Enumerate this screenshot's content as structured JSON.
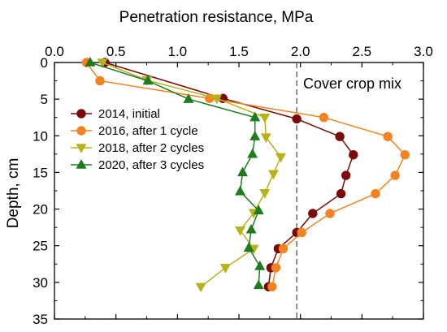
{
  "chart_data": {
    "type": "line",
    "title": "",
    "xlabel": "Penetration resistance, MPa",
    "ylabel": "Depth, cm",
    "xlim": [
      0,
      3.0
    ],
    "ylim": [
      0,
      35
    ],
    "y_inverted": true,
    "x_axis_position": "top",
    "x_ticks": [
      "0.0",
      "0.5",
      "1.0",
      "1.5",
      "2.0",
      "2.5",
      "3.0"
    ],
    "y_ticks": [
      "0",
      "5",
      "10",
      "15",
      "20",
      "25",
      "30",
      "35"
    ],
    "grid": false,
    "legend_position": "left",
    "reference_line": {
      "x": 1.97,
      "style": "dashed"
    },
    "annotation": "Cover crop mix",
    "series": [
      {
        "name": "2014, initial",
        "color": "#7a0a0a",
        "marker": "circle",
        "points": [
          [
            0.41,
            0
          ],
          [
            1.37,
            4.9
          ],
          [
            1.97,
            7.7
          ],
          [
            2.32,
            10.1
          ],
          [
            2.43,
            12.6
          ],
          [
            2.37,
            15.4
          ],
          [
            2.33,
            17.9
          ],
          [
            2.1,
            20.6
          ],
          [
            1.97,
            23.2
          ],
          [
            1.82,
            25.4
          ],
          [
            1.76,
            28.0
          ],
          [
            1.74,
            30.6
          ]
        ]
      },
      {
        "name": "2016, after 1 cycle",
        "color": "#f58220",
        "marker": "circle",
        "points": [
          [
            0.26,
            0
          ],
          [
            0.37,
            2.5
          ],
          [
            1.26,
            4.9
          ],
          [
            2.19,
            7.5
          ],
          [
            2.71,
            10.1
          ],
          [
            2.85,
            12.6
          ],
          [
            2.77,
            15.4
          ],
          [
            2.61,
            17.9
          ],
          [
            2.24,
            20.6
          ],
          [
            2.01,
            23.2
          ],
          [
            1.86,
            25.4
          ],
          [
            1.8,
            28.0
          ],
          [
            1.77,
            30.6
          ]
        ]
      },
      {
        "name": "2018, after 2 cycles",
        "color": "#b7b21a",
        "marker": "triangle-down",
        "points": [
          [
            0.39,
            0
          ],
          [
            0.75,
            2.4
          ],
          [
            1.32,
            4.9
          ],
          [
            1.71,
            7.5
          ],
          [
            1.72,
            10.2
          ],
          [
            1.84,
            12.9
          ],
          [
            1.78,
            15.2
          ],
          [
            1.71,
            17.8
          ],
          [
            1.62,
            20.5
          ],
          [
            1.51,
            22.9
          ],
          [
            1.62,
            25.4
          ],
          [
            1.39,
            28.0
          ],
          [
            1.19,
            30.6
          ]
        ]
      },
      {
        "name": "2020, after 3 cycles",
        "color": "#1e7b1e",
        "marker": "triangle-up",
        "points": [
          [
            0.29,
            0
          ],
          [
            0.76,
            2.5
          ],
          [
            1.09,
            5.0
          ],
          [
            1.63,
            7.5
          ],
          [
            1.63,
            10.1
          ],
          [
            1.61,
            12.5
          ],
          [
            1.53,
            15.0
          ],
          [
            1.51,
            17.6
          ],
          [
            1.66,
            20.2
          ],
          [
            1.6,
            22.8
          ],
          [
            1.58,
            25.3
          ],
          [
            1.67,
            27.8
          ],
          [
            1.66,
            30.4
          ]
        ]
      }
    ]
  }
}
